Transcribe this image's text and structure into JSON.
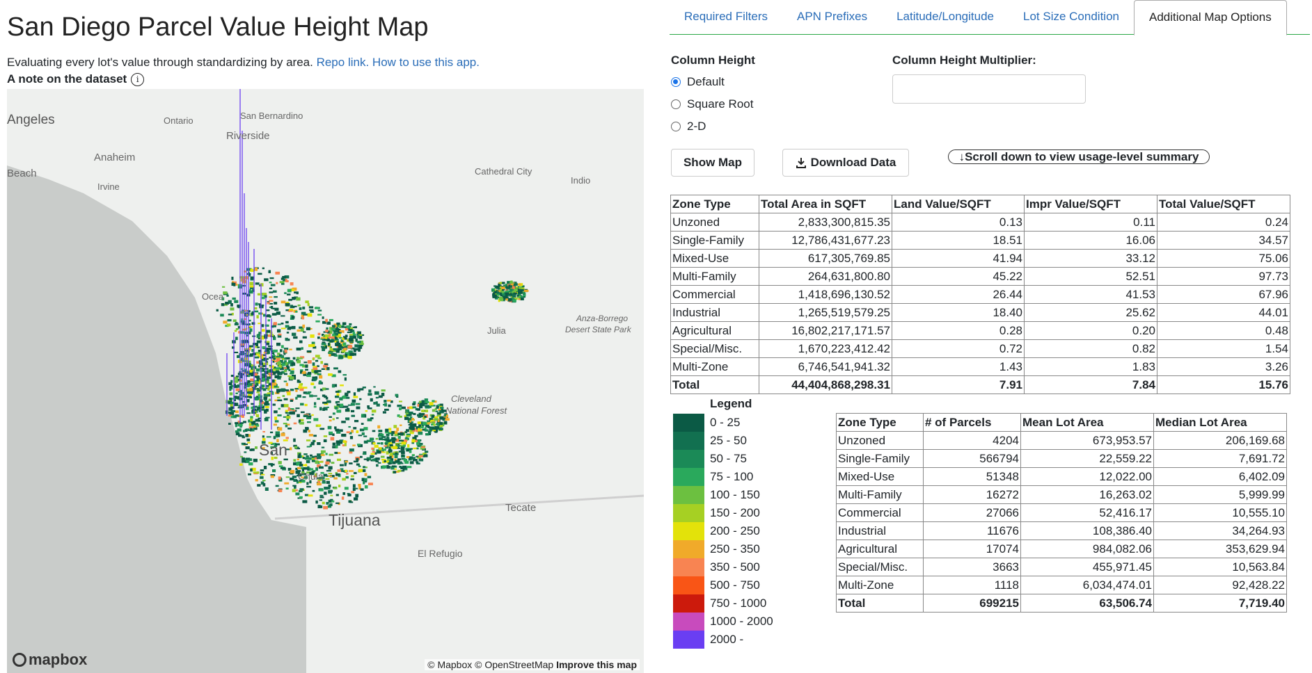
{
  "header": {
    "title": "San Diego Parcel Value Height Map",
    "subtitle_text": "Evaluating every lot's value through standardizing by area.",
    "repo_link": "Repo link.",
    "howto_link": "How to use this app.",
    "note_label": "A note on the dataset",
    "info_icon": "ⓘ"
  },
  "map": {
    "place_labels": [
      {
        "text": "Angeles"
      },
      {
        "text": "Ontario"
      },
      {
        "text": "San Bernardino"
      },
      {
        "text": "Riverside"
      },
      {
        "text": "Anaheim"
      },
      {
        "text": "Beach"
      },
      {
        "text": "Irvine"
      },
      {
        "text": "Cathedral City"
      },
      {
        "text": "Indio"
      },
      {
        "text": "Ocea"
      },
      {
        "text": "Anza-Borrego"
      },
      {
        "text": "Desert State Park"
      },
      {
        "text": "Julia"
      },
      {
        "text": "Cleveland"
      },
      {
        "text": "National Forest"
      },
      {
        "text": "San"
      },
      {
        "text": "Chula"
      },
      {
        "text": "Tijuana"
      },
      {
        "text": "Tecate"
      },
      {
        "text": "El Refugio"
      }
    ],
    "attribution": "© Mapbox © OpenStreetMap",
    "improve_link": "Improve this map",
    "logo_text": "mapbox"
  },
  "tabs": [
    {
      "label": "Required Filters"
    },
    {
      "label": "APN Prefixes"
    },
    {
      "label": "Latitude/Longitude"
    },
    {
      "label": "Lot Size Condition"
    },
    {
      "label": "Additional Map Options",
      "active": true
    }
  ],
  "options": {
    "column_height_label": "Column Height",
    "radios": [
      {
        "label": "Default",
        "checked": true
      },
      {
        "label": "Square Root",
        "checked": false
      },
      {
        "label": "2-D",
        "checked": false
      }
    ],
    "multiplier_label": "Column Height Multiplier:",
    "multiplier_value": "",
    "show_map": "Show Map",
    "download": "Download Data",
    "scroll_hint": "↓Scroll down to view usage-level summary"
  },
  "value_table": {
    "headers": [
      "Zone Type",
      "Total Area in SQFT",
      "Land Value/SQFT",
      "Impr Value/SQFT",
      "Total Value/SQFT"
    ],
    "rows": [
      [
        "Unzoned",
        "2,833,300,815.35",
        "0.13",
        "0.11",
        "0.24"
      ],
      [
        "Single-Family",
        "12,786,431,677.23",
        "18.51",
        "16.06",
        "34.57"
      ],
      [
        "Mixed-Use",
        "617,305,769.85",
        "41.94",
        "33.12",
        "75.06"
      ],
      [
        "Multi-Family",
        "264,631,800.80",
        "45.22",
        "52.51",
        "97.73"
      ],
      [
        "Commercial",
        "1,418,696,130.52",
        "26.44",
        "41.53",
        "67.96"
      ],
      [
        "Industrial",
        "1,265,519,579.25",
        "18.40",
        "25.62",
        "44.01"
      ],
      [
        "Agricultural",
        "16,802,217,171.57",
        "0.28",
        "0.20",
        "0.48"
      ],
      [
        "Special/Misc.",
        "1,670,223,412.42",
        "0.72",
        "0.82",
        "1.54"
      ],
      [
        "Multi-Zone",
        "6,746,541,941.32",
        "1.43",
        "1.83",
        "3.26"
      ]
    ],
    "total": [
      "Total",
      "44,404,868,298.31",
      "7.91",
      "7.84",
      "15.76"
    ]
  },
  "lot_table": {
    "headers": [
      "Zone Type",
      "# of Parcels",
      "Mean Lot Area",
      "Median Lot Area"
    ],
    "rows": [
      [
        "Unzoned",
        "4204",
        "673,953.57",
        "206,169.68"
      ],
      [
        "Single-Family",
        "566794",
        "22,559.22",
        "7,691.72"
      ],
      [
        "Mixed-Use",
        "51348",
        "12,022.00",
        "6,402.09"
      ],
      [
        "Multi-Family",
        "16272",
        "16,263.02",
        "5,999.99"
      ],
      [
        "Commercial",
        "27066",
        "52,416.17",
        "10,555.10"
      ],
      [
        "Industrial",
        "11676",
        "108,386.40",
        "34,264.93"
      ],
      [
        "Agricultural",
        "17074",
        "984,082.06",
        "353,629.94"
      ],
      [
        "Special/Misc.",
        "3663",
        "455,971.45",
        "10,563.84"
      ],
      [
        "Multi-Zone",
        "1118",
        "6,034,474.01",
        "92,428.22"
      ]
    ],
    "total": [
      "Total",
      "699215",
      "63,506.74",
      "7,719.40"
    ]
  },
  "legend": {
    "title": "Legend",
    "items": [
      {
        "label": "0 - 25",
        "color": "#0b5a45"
      },
      {
        "label": "25 - 50",
        "color": "#127050"
      },
      {
        "label": "50 - 75",
        "color": "#1b8a57"
      },
      {
        "label": "75 - 100",
        "color": "#2aa95c"
      },
      {
        "label": "100 - 150",
        "color": "#6cc040"
      },
      {
        "label": "150 - 200",
        "color": "#a6d023"
      },
      {
        "label": "200 - 250",
        "color": "#e3e20a"
      },
      {
        "label": "250 - 350",
        "color": "#f0aa2a"
      },
      {
        "label": "350 - 500",
        "color": "#f88452"
      },
      {
        "label": "500 - 750",
        "color": "#f95516"
      },
      {
        "label": "750 - 1000",
        "color": "#cc1a0c"
      },
      {
        "label": "1000 - 2000",
        "color": "#c84bbd"
      },
      {
        "label": "2000 -",
        "color": "#6a3ef2"
      }
    ]
  }
}
